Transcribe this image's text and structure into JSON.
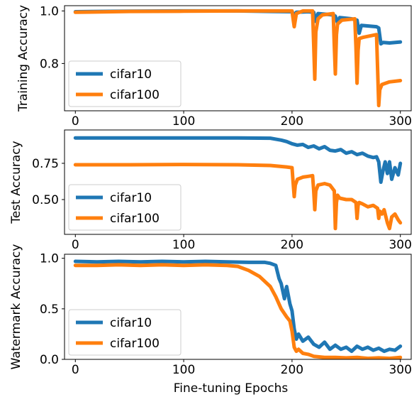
{
  "chart_data": [
    {
      "type": "line",
      "title": "",
      "xlabel": "",
      "ylabel": "Training Accuracy",
      "xlim": [
        -10,
        310
      ],
      "ylim": [
        0.62,
        1.02
      ],
      "x_ticks": [
        0,
        100,
        200,
        300
      ],
      "x_tick_labels": [
        "0",
        "100",
        "200",
        "300"
      ],
      "y_ticks": [
        0.8,
        1.0
      ],
      "y_tick_labels": [
        "0.8",
        "1.0"
      ],
      "legend_position": "lower-left",
      "series": [
        {
          "name": "cifar10",
          "color": "#1f77b4",
          "x": [
            0,
            50,
            100,
            150,
            180,
            200,
            202,
            204,
            215,
            220,
            222,
            224,
            238,
            240,
            242,
            244,
            255,
            260,
            262,
            264,
            278,
            280,
            282,
            284,
            290,
            300
          ],
          "y": [
            0.997,
            0.999,
            1.0,
            1.0,
            0.998,
            0.997,
            0.985,
            0.995,
            0.997,
            0.995,
            0.96,
            0.99,
            0.985,
            0.98,
            0.955,
            0.975,
            0.97,
            0.965,
            0.915,
            0.945,
            0.94,
            0.935,
            0.875,
            0.88,
            0.878,
            0.882
          ]
        },
        {
          "name": "cifar100",
          "color": "#ff7f0e",
          "x": [
            0,
            50,
            100,
            150,
            200,
            201,
            202,
            204,
            210,
            219,
            220,
            221,
            222,
            224,
            228,
            238,
            239,
            240,
            241,
            242,
            246,
            258,
            259,
            260,
            261,
            262,
            266,
            278,
            279,
            280,
            281,
            283,
            290,
            300
          ],
          "y": [
            0.995,
            0.998,
            0.999,
            1.0,
            1.0,
            0.97,
            0.94,
            0.99,
            1.0,
            1.0,
            0.87,
            0.74,
            0.92,
            0.97,
            0.985,
            0.99,
            0.87,
            0.76,
            0.91,
            0.95,
            0.965,
            0.97,
            0.86,
            0.725,
            0.85,
            0.895,
            0.9,
            0.91,
            0.78,
            0.64,
            0.7,
            0.72,
            0.73,
            0.735
          ]
        }
      ]
    },
    {
      "type": "line",
      "title": "",
      "xlabel": "",
      "ylabel": "Test Accuracy",
      "xlim": [
        -10,
        310
      ],
      "ylim": [
        0.26,
        0.98
      ],
      "x_ticks": [
        0,
        100,
        200,
        300
      ],
      "x_tick_labels": [
        "0",
        "100",
        "200",
        "300"
      ],
      "y_ticks": [
        0.5,
        0.75
      ],
      "y_tick_labels": [
        "0.50",
        "0.75"
      ],
      "legend_position": "lower-left",
      "series": [
        {
          "name": "cifar10",
          "color": "#1f77b4",
          "x": [
            0,
            50,
            100,
            150,
            180,
            190,
            195,
            200,
            205,
            210,
            215,
            220,
            225,
            230,
            235,
            240,
            245,
            250,
            255,
            260,
            265,
            270,
            275,
            278,
            280,
            282,
            284,
            286,
            288,
            290,
            292,
            295,
            298,
            300
          ],
          "y": [
            0.925,
            0.925,
            0.925,
            0.925,
            0.923,
            0.91,
            0.9,
            0.885,
            0.875,
            0.88,
            0.86,
            0.87,
            0.85,
            0.865,
            0.84,
            0.835,
            0.845,
            0.82,
            0.83,
            0.81,
            0.82,
            0.8,
            0.79,
            0.795,
            0.76,
            0.62,
            0.7,
            0.76,
            0.68,
            0.76,
            0.64,
            0.72,
            0.67,
            0.75
          ]
        },
        {
          "name": "cifar100",
          "color": "#ff7f0e",
          "x": [
            0,
            50,
            100,
            150,
            180,
            195,
            200,
            201,
            202,
            203,
            205,
            210,
            215,
            219,
            220,
            221,
            222,
            224,
            230,
            235,
            239,
            240,
            241,
            242,
            244,
            250,
            255,
            259,
            260,
            261,
            262,
            265,
            270,
            275,
            279,
            280,
            281,
            283,
            285,
            288,
            290,
            292,
            295,
            298,
            300
          ],
          "y": [
            0.74,
            0.74,
            0.742,
            0.74,
            0.735,
            0.725,
            0.72,
            0.62,
            0.52,
            0.6,
            0.64,
            0.655,
            0.66,
            0.665,
            0.56,
            0.43,
            0.56,
            0.6,
            0.61,
            0.6,
            0.56,
            0.3,
            0.48,
            0.53,
            0.51,
            0.5,
            0.5,
            0.48,
            0.37,
            0.46,
            0.48,
            0.47,
            0.45,
            0.46,
            0.44,
            0.37,
            0.42,
            0.4,
            0.43,
            0.34,
            0.3,
            0.38,
            0.4,
            0.36,
            0.34
          ]
        }
      ]
    },
    {
      "type": "line",
      "title": "",
      "xlabel": "Fine-tuning Epochs",
      "ylabel": "Watermark Accuracy",
      "xlim": [
        -10,
        310
      ],
      "ylim": [
        0,
        1.04
      ],
      "x_ticks": [
        0,
        100,
        200,
        300
      ],
      "x_tick_labels": [
        "0",
        "100",
        "200",
        "300"
      ],
      "y_ticks": [
        0,
        0.5,
        1.0
      ],
      "y_tick_labels": [
        "0.0",
        "0.5",
        "1.0"
      ],
      "legend_position": "lower-left",
      "series": [
        {
          "name": "cifar10",
          "color": "#1f77b4",
          "x": [
            0,
            20,
            40,
            60,
            80,
            100,
            120,
            140,
            160,
            175,
            180,
            185,
            188,
            190,
            193,
            195,
            198,
            200,
            202,
            204,
            206,
            210,
            215,
            220,
            225,
            230,
            235,
            240,
            245,
            250,
            255,
            260,
            265,
            270,
            275,
            280,
            285,
            290,
            295,
            300
          ],
          "y": [
            0.97,
            0.965,
            0.97,
            0.965,
            0.97,
            0.965,
            0.97,
            0.965,
            0.96,
            0.96,
            0.95,
            0.93,
            0.8,
            0.75,
            0.6,
            0.72,
            0.55,
            0.48,
            0.3,
            0.2,
            0.25,
            0.18,
            0.22,
            0.15,
            0.12,
            0.17,
            0.1,
            0.14,
            0.1,
            0.12,
            0.08,
            0.13,
            0.1,
            0.12,
            0.09,
            0.11,
            0.08,
            0.1,
            0.09,
            0.13
          ]
        },
        {
          "name": "cifar100",
          "color": "#ff7f0e",
          "x": [
            0,
            20,
            40,
            60,
            80,
            100,
            120,
            140,
            150,
            160,
            170,
            180,
            185,
            190,
            195,
            198,
            200,
            202,
            204,
            206,
            210,
            215,
            220,
            230,
            240,
            250,
            260,
            270,
            280,
            290,
            300
          ],
          "y": [
            0.93,
            0.93,
            0.935,
            0.93,
            0.935,
            0.93,
            0.935,
            0.93,
            0.92,
            0.88,
            0.82,
            0.72,
            0.62,
            0.5,
            0.42,
            0.38,
            0.28,
            0.12,
            0.08,
            0.1,
            0.06,
            0.05,
            0.03,
            0.02,
            0.02,
            0.015,
            0.02,
            0.01,
            0.015,
            0.01,
            0.02
          ]
        }
      ]
    }
  ],
  "x_ticks": [
    0,
    100,
    200,
    300
  ]
}
